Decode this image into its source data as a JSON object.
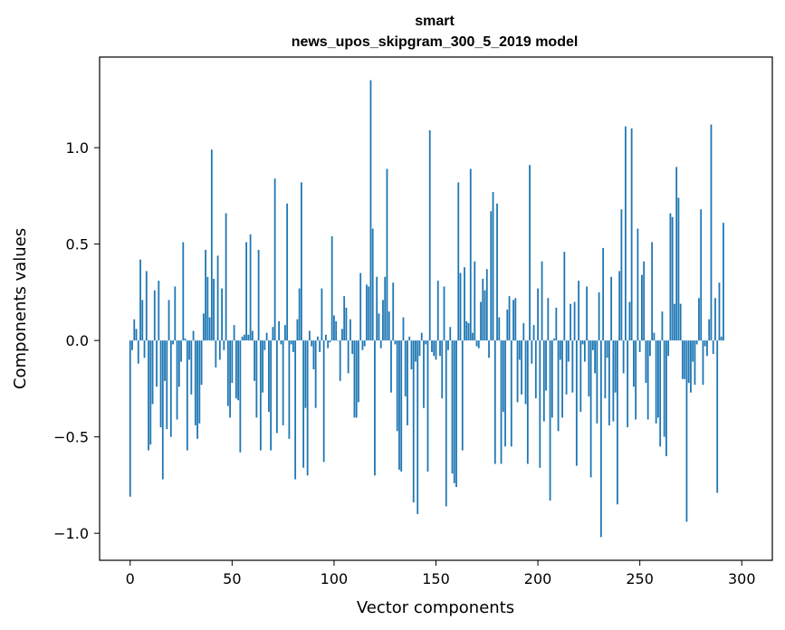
{
  "chart_data": {
    "type": "bar",
    "title_line1": "smart",
    "title_line2": "news_upos_skipgram_300_5_2019 model",
    "xlabel": "Vector components",
    "ylabel": "Components values",
    "xlim": [
      -15,
      315
    ],
    "ylim": [
      -1.14,
      1.47
    ],
    "xticks": [
      0,
      50,
      100,
      150,
      200,
      250,
      300
    ],
    "xtick_labels": [
      "0",
      "50",
      "100",
      "150",
      "200",
      "250",
      "300"
    ],
    "yticks": [
      -1.0,
      -0.5,
      0.0,
      0.5,
      1.0
    ],
    "ytick_labels": [
      "−1.0",
      "−0.5",
      "0.0",
      "0.5",
      "1.0"
    ],
    "bar_color": "#1f77b4",
    "grid": false,
    "values": [
      -0.81,
      -0.05,
      0.11,
      0.06,
      -0.12,
      0.42,
      0.21,
      -0.09,
      0.36,
      -0.57,
      -0.54,
      -0.33,
      0.26,
      -0.24,
      0.31,
      -0.45,
      -0.72,
      -0.21,
      -0.46,
      0.21,
      -0.5,
      -0.02,
      0.28,
      -0.41,
      -0.24,
      -0.11,
      0.51,
      0.01,
      -0.57,
      -0.1,
      -0.28,
      0.05,
      -0.44,
      -0.51,
      -0.43,
      -0.23,
      0.14,
      0.47,
      0.33,
      0.12,
      0.99,
      0.32,
      -0.14,
      0.44,
      -0.1,
      0.27,
      -0.05,
      0.66,
      -0.34,
      -0.4,
      -0.22,
      0.08,
      -0.3,
      -0.31,
      -0.58,
      0.02,
      0.03,
      0.51,
      0.03,
      0.55,
      0.05,
      -0.21,
      -0.4,
      0.47,
      -0.57,
      -0.27,
      -0.05,
      0.04,
      -0.37,
      -0.57,
      0.07,
      0.84,
      -0.48,
      0.1,
      -0.02,
      -0.44,
      0.08,
      0.71,
      -0.51,
      -0.02,
      -0.06,
      -0.72,
      0.11,
      0.27,
      0.82,
      -0.66,
      -0.35,
      -0.7,
      0.05,
      -0.03,
      -0.15,
      -0.35,
      0.02,
      -0.06,
      0.27,
      -0.63,
      0.03,
      -0.04,
      -0.01,
      0.54,
      0.13,
      0.1,
      0.0,
      -0.21,
      0.06,
      0.23,
      0.17,
      -0.17,
      0.11,
      -0.07,
      -0.4,
      -0.4,
      -0.32,
      0.35,
      -0.05,
      -0.03,
      0.29,
      0.28,
      1.35,
      0.58,
      -0.7,
      0.33,
      0.14,
      -0.04,
      0.21,
      0.33,
      0.89,
      0.15,
      -0.27,
      0.3,
      -0.02,
      -0.47,
      -0.67,
      -0.68,
      0.12,
      -0.29,
      -0.44,
      0.02,
      -0.15,
      -0.84,
      -0.11,
      -0.9,
      -0.08,
      0.04,
      -0.35,
      -0.02,
      -0.68,
      1.09,
      -0.06,
      -0.08,
      -0.1,
      0.31,
      -0.08,
      -0.3,
      0.28,
      -0.86,
      -0.05,
      0.07,
      -0.69,
      -0.74,
      -0.76,
      0.82,
      0.35,
      -0.57,
      0.38,
      0.1,
      0.09,
      0.89,
      0.04,
      0.41,
      -0.03,
      -0.04,
      0.2,
      0.32,
      0.26,
      0.37,
      -0.09,
      0.67,
      0.77,
      -0.64,
      0.71,
      0.12,
      -0.64,
      -0.37,
      -0.55,
      0.16,
      0.23,
      -0.55,
      0.21,
      0.22,
      -0.32,
      -0.1,
      -0.28,
      0.09,
      -0.33,
      -0.64,
      0.91,
      -0.12,
      0.08,
      -0.3,
      0.27,
      -0.66,
      0.41,
      -0.42,
      -0.26,
      0.22,
      -0.83,
      -0.4,
      0.01,
      0.17,
      -0.47,
      -0.1,
      -0.4,
      0.46,
      -0.28,
      -0.11,
      0.19,
      -0.27,
      0.2,
      -0.65,
      0.31,
      -0.37,
      -0.02,
      -0.11,
      0.28,
      -0.29,
      -0.71,
      -0.05,
      -0.17,
      -0.43,
      0.25,
      -1.02,
      0.48,
      -0.3,
      -0.09,
      -0.44,
      0.33,
      -0.42,
      -0.27,
      -0.85,
      0.36,
      0.68,
      -0.17,
      1.11,
      -0.45,
      0.2,
      1.1,
      -0.24,
      -0.41,
      0.58,
      -0.06,
      0.34,
      0.41,
      -0.22,
      -0.41,
      -0.08,
      0.51,
      0.04,
      -0.43,
      -0.4,
      -0.55,
      0.15,
      -0.5,
      -0.6,
      -0.08,
      0.66,
      0.64,
      0.19,
      0.9,
      0.74,
      0.19,
      -0.2,
      -0.2,
      -0.94,
      -0.22,
      -0.27,
      -0.11,
      -0.23,
      -0.02,
      0.22,
      0.68,
      -0.23,
      -0.03,
      -0.08,
      0.11,
      1.12,
      -0.07,
      0.22,
      -0.79,
      0.3,
      0.02,
      0.61
    ]
  }
}
